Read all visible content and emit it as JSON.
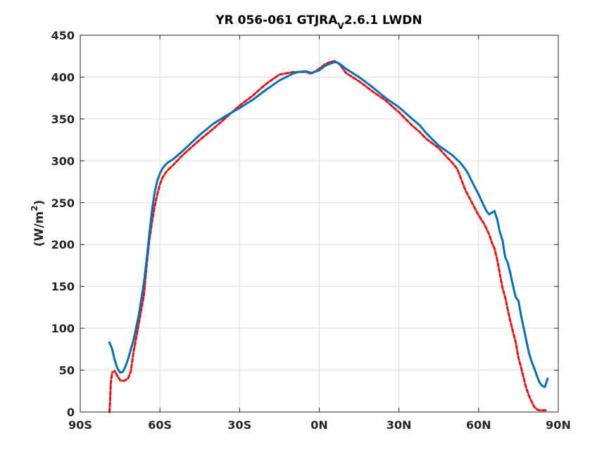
{
  "chart_data": {
    "type": "line",
    "title_main": "YR 056-061 GTJRA",
    "title_sub": "V",
    "title_tail": "2.6.1 LWDN",
    "ylabel_main": "(W/m",
    "ylabel_sup": "2",
    "ylabel_tail": ")",
    "xlim": [
      -90,
      90
    ],
    "ylim": [
      0,
      450
    ],
    "grid": true,
    "x_ticks": [
      -90,
      -60,
      -30,
      0,
      30,
      60,
      90
    ],
    "x_tick_labels": [
      "90S",
      "60S",
      "30S",
      "0N",
      "30N",
      "60N",
      "90N"
    ],
    "y_ticks": [
      0,
      50,
      100,
      150,
      200,
      250,
      300,
      350,
      400,
      450
    ],
    "y_tick_labels": [
      "0",
      "50",
      "100",
      "150",
      "200",
      "250",
      "300",
      "350",
      "400",
      "450"
    ],
    "series": [
      {
        "color": "#0072BD",
        "style": "solid",
        "x": [
          -79,
          -78,
          -77,
          -76,
          -75,
          -74,
          -73,
          -72,
          -70,
          -68,
          -66,
          -65,
          -64,
          -63,
          -62,
          -61,
          -60,
          -59,
          -58,
          -57,
          -55,
          -52,
          -50,
          -45,
          -40,
          -35,
          -30,
          -25,
          -20,
          -15,
          -10,
          -8,
          -5,
          -3,
          -2,
          0,
          2,
          4,
          6,
          7,
          8,
          10,
          15,
          20,
          25,
          30,
          35,
          38,
          40,
          45,
          50,
          53,
          55,
          56,
          58,
          60,
          62,
          63,
          64,
          65,
          66,
          67,
          68,
          69,
          70,
          71,
          72,
          73,
          74,
          75,
          76,
          77,
          78,
          79,
          80,
          81,
          82,
          83,
          84,
          85,
          86
        ],
        "y": [
          83,
          75,
          62,
          52,
          47,
          48,
          54,
          63,
          85,
          115,
          155,
          182,
          212,
          240,
          262,
          276,
          285,
          291,
          295,
          298,
          302,
          310,
          316,
          331,
          344,
          354,
          363,
          373,
          385,
          396,
          404,
          406,
          407,
          405,
          406,
          408,
          413,
          416,
          418,
          417,
          415,
          410,
          400,
          388,
          375,
          364,
          350,
          342,
          334,
          318,
          307,
          298,
          290,
          285,
          272,
          260,
          246,
          240,
          236,
          238,
          240,
          230,
          215,
          205,
          185,
          178,
          165,
          150,
          137,
          133,
          115,
          100,
          85,
          70,
          60,
          52,
          43,
          35,
          31,
          30,
          40
        ]
      },
      {
        "color": "#EE1111",
        "style": "dashed",
        "x": [
          -79,
          -78.8,
          -78.5,
          -78,
          -77,
          -76,
          -75,
          -74,
          -73,
          -72,
          -71,
          -70,
          -68,
          -66,
          -65,
          -64,
          -63,
          -62,
          -61,
          -60,
          -59,
          -58,
          -57,
          -55,
          -52,
          -50,
          -45,
          -40,
          -35,
          -30,
          -25,
          -20,
          -15,
          -10,
          -8,
          -5,
          -3,
          -2,
          0,
          2,
          4,
          6,
          7,
          8,
          10,
          15,
          20,
          25,
          30,
          35,
          38,
          40,
          45,
          50,
          52,
          55,
          57,
          60,
          62,
          64,
          65,
          66,
          67,
          68,
          69,
          70,
          71,
          72,
          73,
          74,
          75,
          76,
          77,
          78,
          79,
          80,
          81,
          82,
          83,
          84,
          85,
          86
        ],
        "y": [
          0,
          10,
          35,
          47,
          49,
          43,
          38,
          37,
          38,
          40,
          48,
          70,
          105,
          140,
          175,
          205,
          226,
          245,
          260,
          272,
          280,
          285,
          289,
          295,
          305,
          311,
          325,
          338,
          352,
          366,
          378,
          392,
          403,
          406,
          406,
          406,
          404,
          406,
          410,
          415,
          418,
          419,
          417,
          414,
          405,
          395,
          383,
          372,
          358,
          342,
          334,
          327,
          315,
          298,
          290,
          265,
          253,
          235,
          225,
          212,
          202,
          195,
          182,
          165,
          148,
          137,
          122,
          108,
          95,
          83,
          65,
          53,
          40,
          28,
          19,
          12,
          6,
          3,
          2,
          2,
          2,
          2
        ]
      }
    ]
  }
}
